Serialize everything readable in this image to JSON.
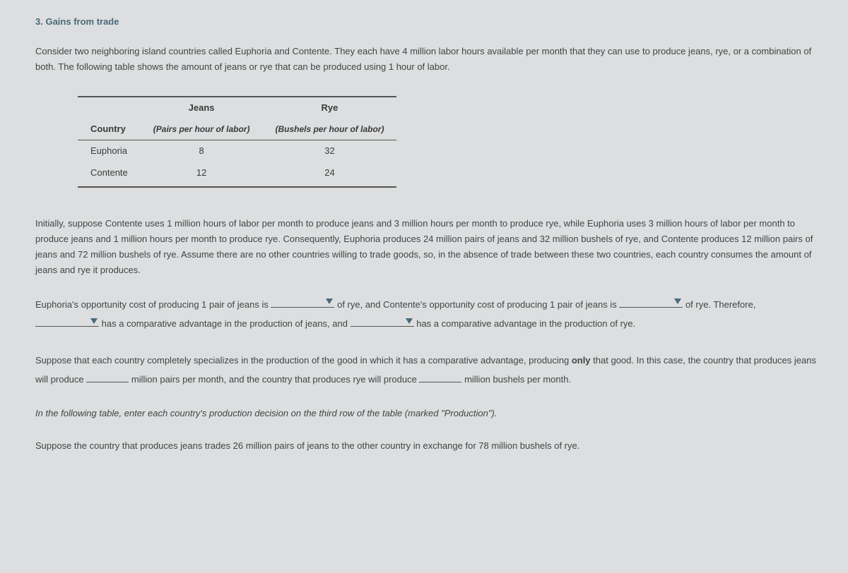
{
  "title": "3. Gains from trade",
  "intro1": "Consider two neighboring island countries called Euphoria and Contente. They each have 4 million labor hours available per month that they can use to produce jeans, rye, or a combination of both. The following table shows the amount of jeans or rye that can be produced using 1 hour of labor.",
  "table": {
    "col_country": "Country",
    "col_jeans_top": "Jeans",
    "col_jeans_sub": "(Pairs per hour of labor)",
    "col_rye_top": "Rye",
    "col_rye_sub": "(Bushels per hour of labor)",
    "rows": [
      {
        "country": "Euphoria",
        "jeans": "8",
        "rye": "32"
      },
      {
        "country": "Contente",
        "jeans": "12",
        "rye": "24"
      }
    ]
  },
  "para2": "Initially, suppose Contente uses 1 million hours of labor per month to produce jeans and 3 million hours per month to produce rye, while Euphoria uses 3 million hours of labor per month to produce jeans and 1 million hours per month to produce rye. Consequently, Euphoria produces 24 million pairs of jeans and 32 million bushels of rye, and Contente produces 12 million pairs of jeans and 72 million bushels of rye. Assume there are no other countries willing to trade goods, so, in the absence of trade between these two countries, each country consumes the amount of jeans and rye it produces.",
  "fill": {
    "t1": "Euphoria's opportunity cost of producing 1 pair of jeans is ",
    "t2": " of rye, and Contente's opportunity cost of producing 1 pair of jeans is ",
    "t3": " of rye. Therefore, ",
    "t4": " has a comparative advantage in the production of jeans, and ",
    "t5": " has a comparative advantage in the production of rye."
  },
  "spec": {
    "t1": "Suppose that each country completely specializes in the production of the good in which it has a comparative advantage, producing ",
    "only": "only",
    "t2": " that good. In this case, the country that produces jeans will produce ",
    "t3": " million pairs per month, and the country that produces rye will produce ",
    "t4": " million bushels per month."
  },
  "instruction": "In the following table, enter each country's production decision on the third row of the table (marked \"Production\").",
  "trade": "Suppose the country that produces jeans trades 26 million pairs of jeans to the other country in exchange for 78 million bushels of rye."
}
